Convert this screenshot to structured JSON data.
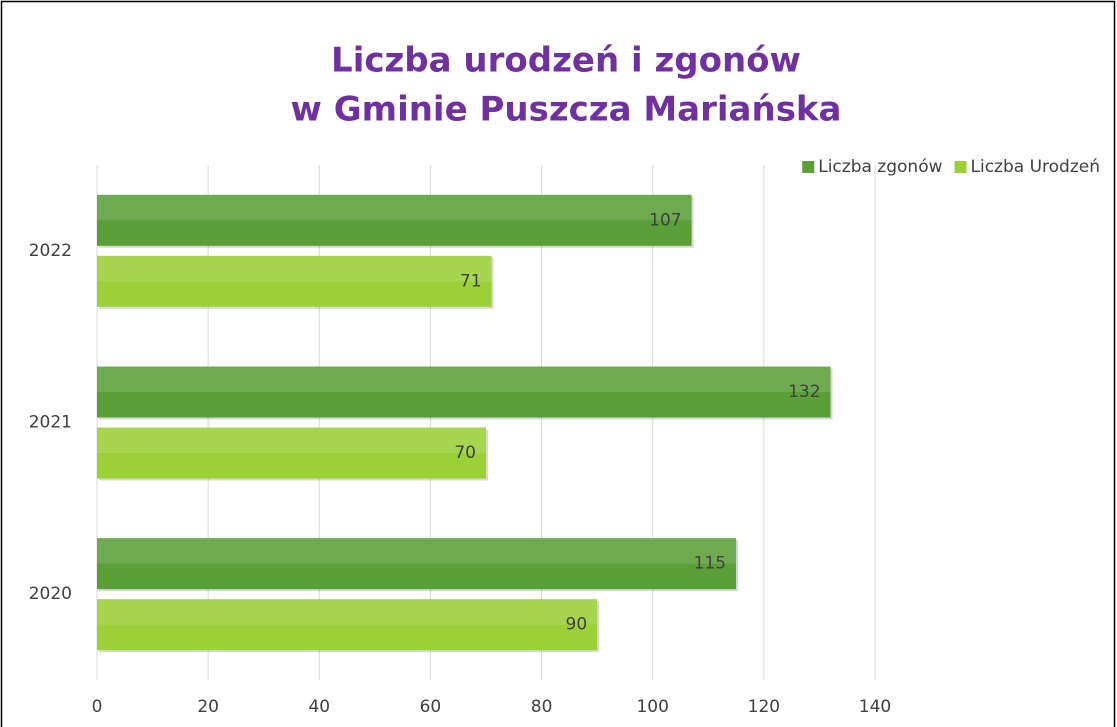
{
  "chart_data": {
    "type": "barh",
    "title": [
      "Liczba urodzeń i zgonów",
      "w Gminie Puszcza Mariańska"
    ],
    "categories": [
      "2020",
      "2021",
      "2022"
    ],
    "series": [
      {
        "name": "Liczba zgonów",
        "color": "#5b9f38",
        "values": [
          115,
          132,
          107
        ]
      },
      {
        "name": "Liczba Urodzeń",
        "color": "#9bd037",
        "values": [
          90,
          70,
          71
        ]
      }
    ],
    "xlim": [
      0,
      140
    ],
    "xticks": [
      0,
      20,
      40,
      60,
      80,
      100,
      120,
      140
    ],
    "grid": true,
    "legend": "top-right"
  }
}
